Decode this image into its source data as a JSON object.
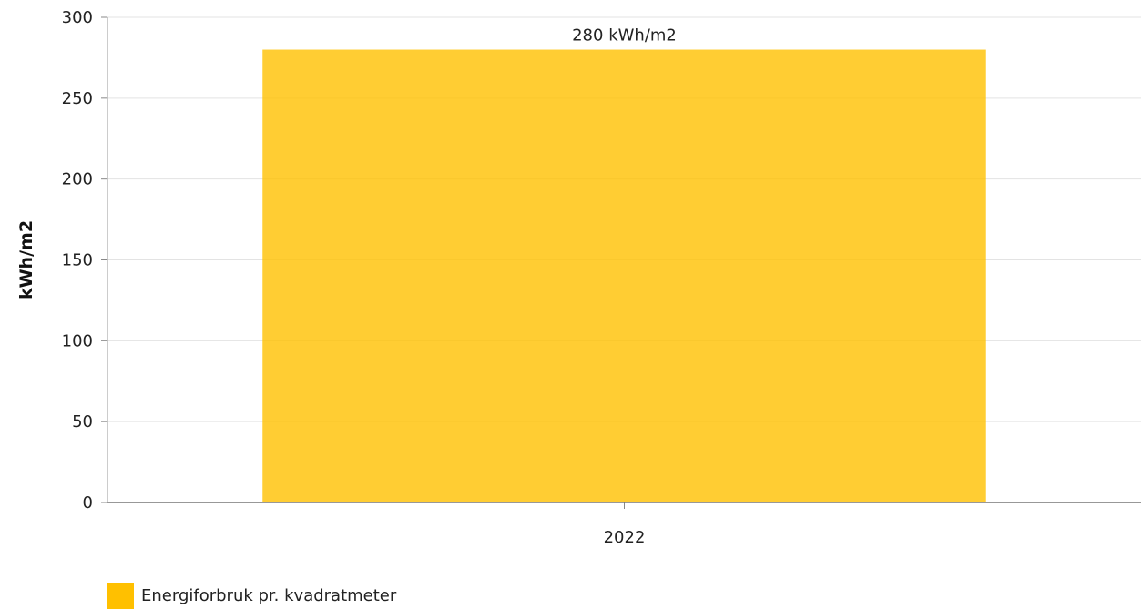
{
  "chart_data": {
    "type": "bar",
    "categories": [
      "2022"
    ],
    "series": [
      {
        "name": "Energiforbruk pr. kvadratmeter",
        "values": [
          280
        ],
        "color": "#FFC000",
        "data_labels": [
          "280 kWh/m2"
        ]
      }
    ],
    "title": "",
    "xlabel": "",
    "ylabel": "kWh/m2",
    "ylim": [
      0,
      300
    ],
    "yticks": [
      0,
      50,
      100,
      150,
      200,
      250,
      300
    ],
    "grid": true,
    "legend_position": "bottom-left"
  }
}
